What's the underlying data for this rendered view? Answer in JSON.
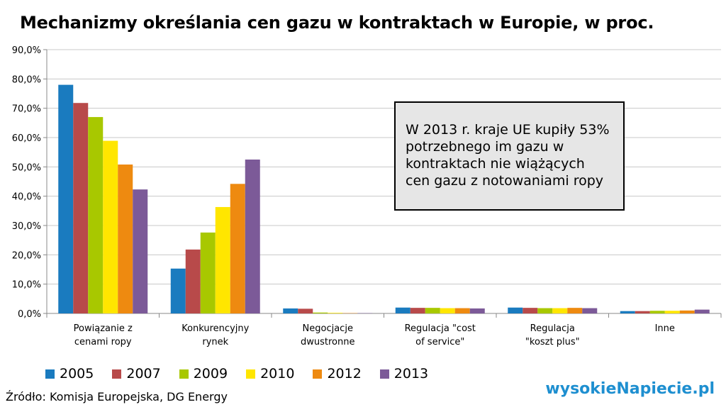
{
  "chart_data": {
    "type": "bar",
    "title": "Mechanizmy określania cen gazu w kontraktach w Europie, w proc.",
    "categories": [
      [
        "Powiązanie z",
        "cenami ropy"
      ],
      [
        "Konkurencyjny",
        "rynek"
      ],
      [
        "Negocjacje",
        "dwustronne"
      ],
      [
        "Regulacja \"cost",
        "of service\""
      ],
      [
        "Regulacja",
        "\"koszt plus\""
      ],
      [
        "Inne"
      ]
    ],
    "series": [
      {
        "name": "2005",
        "color": "#1a7bbf",
        "values": [
          78.0,
          15.3,
          1.7,
          2.0,
          2.0,
          0.8
        ]
      },
      {
        "name": "2007",
        "color": "#b84a4a",
        "values": [
          71.8,
          21.8,
          1.6,
          1.9,
          1.9,
          0.8
        ]
      },
      {
        "name": "2009",
        "color": "#a8c800",
        "values": [
          67.0,
          27.6,
          0.3,
          1.9,
          1.8,
          0.9
        ]
      },
      {
        "name": "2010",
        "color": "#ffe600",
        "values": [
          58.9,
          36.3,
          0.2,
          1.8,
          1.8,
          0.9
        ]
      },
      {
        "name": "2012",
        "color": "#ee8a10",
        "values": [
          50.8,
          44.2,
          0.1,
          1.8,
          1.9,
          1.0
        ]
      },
      {
        "name": "2013",
        "color": "#7c5a98",
        "values": [
          42.3,
          52.5,
          0.1,
          1.7,
          1.8,
          1.3
        ]
      }
    ],
    "ylim": [
      0,
      90
    ],
    "yticks": [
      0,
      10,
      20,
      30,
      40,
      50,
      60,
      70,
      80,
      90
    ],
    "ytick_labels": [
      "0,0%",
      "10,0%",
      "20,0%",
      "30,0%",
      "40,0%",
      "50,0%",
      "60,0%",
      "70,0%",
      "80,0%",
      "90,0%"
    ],
    "grid": true,
    "legend_position": "bottom"
  },
  "annotation": "W 2013 r. kraje UE kupiły 53% potrzebnego im gazu w kontraktach nie wiążących cen gazu z notowaniami ropy",
  "source": "Źródło: Komisja Europejska, DG Energy",
  "logo": "wysokieNapiecie.pl"
}
